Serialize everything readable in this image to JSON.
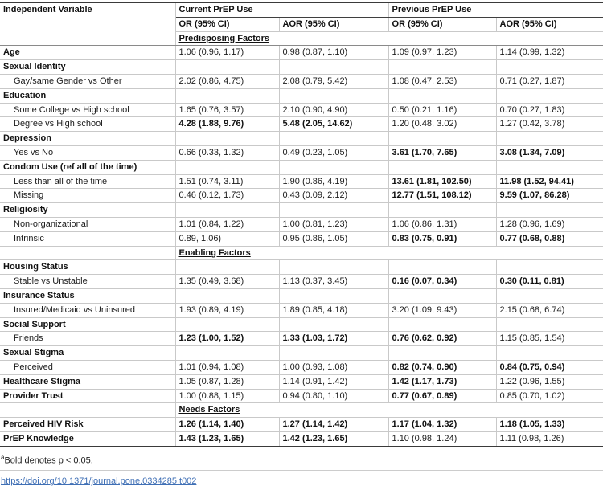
{
  "table": {
    "header": {
      "independent_variable": "Independent Variable",
      "groups": [
        "Current PrEP Use",
        "Previous PrEP Use"
      ],
      "subheads": [
        "OR (95% CI)",
        "AOR (95% CI)",
        "OR (95% CI)",
        "AOR (95% CI)"
      ]
    },
    "rows": [
      {
        "type": "section",
        "label": "Predisposing Factors"
      },
      {
        "type": "row",
        "label": "Age",
        "indent": false,
        "cells": [
          {
            "t": "1.06 (0.96, 1.17)",
            "b": false
          },
          {
            "t": "0.98 (0.87, 1.10)",
            "b": false
          },
          {
            "t": "1.09 (0.97, 1.23)",
            "b": false
          },
          {
            "t": "1.14 (0.99, 1.32)",
            "b": false
          }
        ]
      },
      {
        "type": "row",
        "label": "Sexual Identity",
        "indent": false,
        "cells": [
          {
            "t": "",
            "b": false
          },
          {
            "t": "",
            "b": false
          },
          {
            "t": "",
            "b": false
          },
          {
            "t": "",
            "b": false
          }
        ]
      },
      {
        "type": "row",
        "label": "Gay/same Gender vs Other",
        "indent": true,
        "cells": [
          {
            "t": "2.02 (0.86, 4.75)",
            "b": false
          },
          {
            "t": "2.08 (0.79, 5.42)",
            "b": false
          },
          {
            "t": "1.08 (0.47, 2.53)",
            "b": false
          },
          {
            "t": "0.71 (0.27, 1.87)",
            "b": false
          }
        ]
      },
      {
        "type": "row",
        "label": "Education",
        "indent": false,
        "cells": [
          {
            "t": "",
            "b": false
          },
          {
            "t": "",
            "b": false
          },
          {
            "t": "",
            "b": false
          },
          {
            "t": "",
            "b": false
          }
        ]
      },
      {
        "type": "row",
        "label": "Some College vs High school",
        "indent": true,
        "cells": [
          {
            "t": "1.65 (0.76, 3.57)",
            "b": false
          },
          {
            "t": "2.10 (0.90, 4.90)",
            "b": false
          },
          {
            "t": "0.50 (0.21, 1.16)",
            "b": false
          },
          {
            "t": "0.70 (0.27, 1.83)",
            "b": false
          }
        ]
      },
      {
        "type": "row",
        "label": "Degree vs High school",
        "indent": true,
        "cells": [
          {
            "t": "4.28 (1.88, 9.76)",
            "b": true
          },
          {
            "t": "5.48 (2.05, 14.62)",
            "b": true
          },
          {
            "t": "1.20 (0.48, 3.02)",
            "b": false
          },
          {
            "t": "1.27 (0.42, 3.78)",
            "b": false
          }
        ]
      },
      {
        "type": "row",
        "label": "Depression",
        "indent": false,
        "cells": [
          {
            "t": "",
            "b": false
          },
          {
            "t": "",
            "b": false
          },
          {
            "t": "",
            "b": false
          },
          {
            "t": "",
            "b": false
          }
        ]
      },
      {
        "type": "row",
        "label": "Yes vs No",
        "indent": true,
        "cells": [
          {
            "t": "0.66 (0.33, 1.32)",
            "b": false
          },
          {
            "t": "0.49 (0.23, 1.05)",
            "b": false
          },
          {
            "t": "3.61 (1.70, 7.65)",
            "b": true
          },
          {
            "t": "3.08 (1.34, 7.09)",
            "b": true
          }
        ]
      },
      {
        "type": "row",
        "label": "Condom Use (ref all of the time)",
        "indent": false,
        "cells": [
          {
            "t": "",
            "b": false
          },
          {
            "t": "",
            "b": false
          },
          {
            "t": "",
            "b": false
          },
          {
            "t": "",
            "b": false
          }
        ]
      },
      {
        "type": "row",
        "label": "Less than all of the time",
        "indent": true,
        "cells": [
          {
            "t": "1.51 (0.74, 3.11)",
            "b": false
          },
          {
            "t": "1.90 (0.86, 4.19)",
            "b": false
          },
          {
            "t": "13.61 (1.81, 102.50)",
            "b": true
          },
          {
            "t": "11.98 (1.52, 94.41)",
            "b": true
          }
        ]
      },
      {
        "type": "row",
        "label": "Missing",
        "indent": true,
        "cells": [
          {
            "t": "0.46 (0.12, 1.73)",
            "b": false
          },
          {
            "t": "0.43 (0.09, 2.12)",
            "b": false
          },
          {
            "t": "12.77 (1.51, 108.12)",
            "b": true
          },
          {
            "t": "9.59 (1.07, 86.28)",
            "b": true
          }
        ]
      },
      {
        "type": "row",
        "label": "Religiosity",
        "indent": false,
        "cells": [
          {
            "t": "",
            "b": false
          },
          {
            "t": "",
            "b": false
          },
          {
            "t": "",
            "b": false
          },
          {
            "t": "",
            "b": false
          }
        ]
      },
      {
        "type": "row",
        "label": "Non-organizational",
        "indent": true,
        "cells": [
          {
            "t": "1.01 (0.84, 1.22)",
            "b": false
          },
          {
            "t": "1.00 (0.81, 1.23)",
            "b": false
          },
          {
            "t": "1.06 (0.86, 1.31)",
            "b": false
          },
          {
            "t": "1.28 (0.96, 1.69)",
            "b": false
          }
        ]
      },
      {
        "type": "row",
        "label": "Intrinsic",
        "indent": true,
        "cells": [
          {
            "t": "0.89, 1.06)",
            "b": false
          },
          {
            "t": "0.95 (0.86, 1.05)",
            "b": false
          },
          {
            "t": "0.83 (0.75, 0.91)",
            "b": true
          },
          {
            "t": "0.77 (0.68, 0.88)",
            "b": true
          }
        ]
      },
      {
        "type": "section",
        "label": "Enabling Factors"
      },
      {
        "type": "row",
        "label": "Housing Status",
        "indent": false,
        "cells": [
          {
            "t": "",
            "b": false
          },
          {
            "t": "",
            "b": false
          },
          {
            "t": "",
            "b": false
          },
          {
            "t": "",
            "b": false
          }
        ]
      },
      {
        "type": "row",
        "label": "Stable vs Unstable",
        "indent": true,
        "cells": [
          {
            "t": "1.35 (0.49, 3.68)",
            "b": false
          },
          {
            "t": "1.13 (0.37, 3.45)",
            "b": false
          },
          {
            "t": "0.16 (0.07, 0.34)",
            "b": true
          },
          {
            "t": "0.30 (0.11, 0.81)",
            "b": true
          }
        ]
      },
      {
        "type": "row",
        "label": "Insurance Status",
        "indent": false,
        "cells": [
          {
            "t": "",
            "b": false
          },
          {
            "t": "",
            "b": false
          },
          {
            "t": "",
            "b": false
          },
          {
            "t": "",
            "b": false
          }
        ]
      },
      {
        "type": "row",
        "label": "Insured/Medicaid vs Uninsured",
        "indent": true,
        "cells": [
          {
            "t": "1.93 (0.89, 4.19)",
            "b": false
          },
          {
            "t": "1.89 (0.85, 4.18)",
            "b": false
          },
          {
            "t": "3.20 (1.09, 9.43)",
            "b": false
          },
          {
            "t": "2.15 (0.68, 6.74)",
            "b": false
          }
        ]
      },
      {
        "type": "row",
        "label": "Social Support",
        "indent": false,
        "cells": [
          {
            "t": "",
            "b": false
          },
          {
            "t": "",
            "b": false
          },
          {
            "t": "",
            "b": false
          },
          {
            "t": "",
            "b": false
          }
        ]
      },
      {
        "type": "row",
        "label": "Friends",
        "indent": true,
        "cells": [
          {
            "t": "1.23 (1.00, 1.52)",
            "b": true
          },
          {
            "t": "1.33 (1.03, 1.72)",
            "b": true
          },
          {
            "t": "0.76 (0.62, 0.92)",
            "b": true
          },
          {
            "t": "1.15 (0.85, 1.54)",
            "b": false
          }
        ]
      },
      {
        "type": "row",
        "label": "Sexual Stigma",
        "indent": false,
        "cells": [
          {
            "t": "",
            "b": false
          },
          {
            "t": "",
            "b": false
          },
          {
            "t": "",
            "b": false
          },
          {
            "t": "",
            "b": false
          }
        ]
      },
      {
        "type": "row",
        "label": "Perceived",
        "indent": true,
        "cells": [
          {
            "t": "1.01 (0.94, 1.08)",
            "b": false
          },
          {
            "t": "1.00 (0.93, 1.08)",
            "b": false
          },
          {
            "t": "0.82 (0.74, 0.90)",
            "b": true
          },
          {
            "t": "0.84 (0.75, 0.94)",
            "b": true
          }
        ]
      },
      {
        "type": "row",
        "label": "Healthcare Stigma",
        "indent": false,
        "cells": [
          {
            "t": "1.05 (0.87, 1.28)",
            "b": false
          },
          {
            "t": "1.14 (0.91, 1.42)",
            "b": false
          },
          {
            "t": "1.42 (1.17, 1.73)",
            "b": true
          },
          {
            "t": "1.22 (0.96, 1.55)",
            "b": false
          }
        ]
      },
      {
        "type": "row",
        "label": "Provider Trust",
        "indent": false,
        "cells": [
          {
            "t": "1.00 (0.88, 1.15)",
            "b": false
          },
          {
            "t": "0.94 (0.80, 1.10)",
            "b": false
          },
          {
            "t": "0.77 (0.67, 0.89)",
            "b": true
          },
          {
            "t": "0.85 (0.70, 1.02)",
            "b": false
          }
        ]
      },
      {
        "type": "section",
        "label": "Needs Factors"
      },
      {
        "type": "row",
        "label": "Perceived HIV Risk",
        "indent": false,
        "cells": [
          {
            "t": "1.26 (1.14, 1.40)",
            "b": true
          },
          {
            "t": "1.27 (1.14, 1.42)",
            "b": true
          },
          {
            "t": "1.17 (1.04, 1.32)",
            "b": true
          },
          {
            "t": "1.18 (1.05, 1.33)",
            "b": true
          }
        ]
      },
      {
        "type": "row",
        "label": "PrEP Knowledge",
        "indent": false,
        "cells": [
          {
            "t": "1.43 (1.23, 1.65)",
            "b": true
          },
          {
            "t": "1.42 (1.23, 1.65)",
            "b": true
          },
          {
            "t": "1.10 (0.98, 1.24)",
            "b": false
          },
          {
            "t": "1.11 (0.98, 1.26)",
            "b": false
          }
        ]
      }
    ]
  },
  "footer": {
    "footnote_marker": "a",
    "footnote_text": "Bold denotes p < 0.05.",
    "doi_link": "https://doi.org/10.1371/journal.pone.0334285.t002"
  },
  "colors": {
    "border_light": "#c9c9c9",
    "border_dark": "#3a3a3a",
    "link_blue": "#3f6fb5",
    "text": "#1c1c1c"
  }
}
